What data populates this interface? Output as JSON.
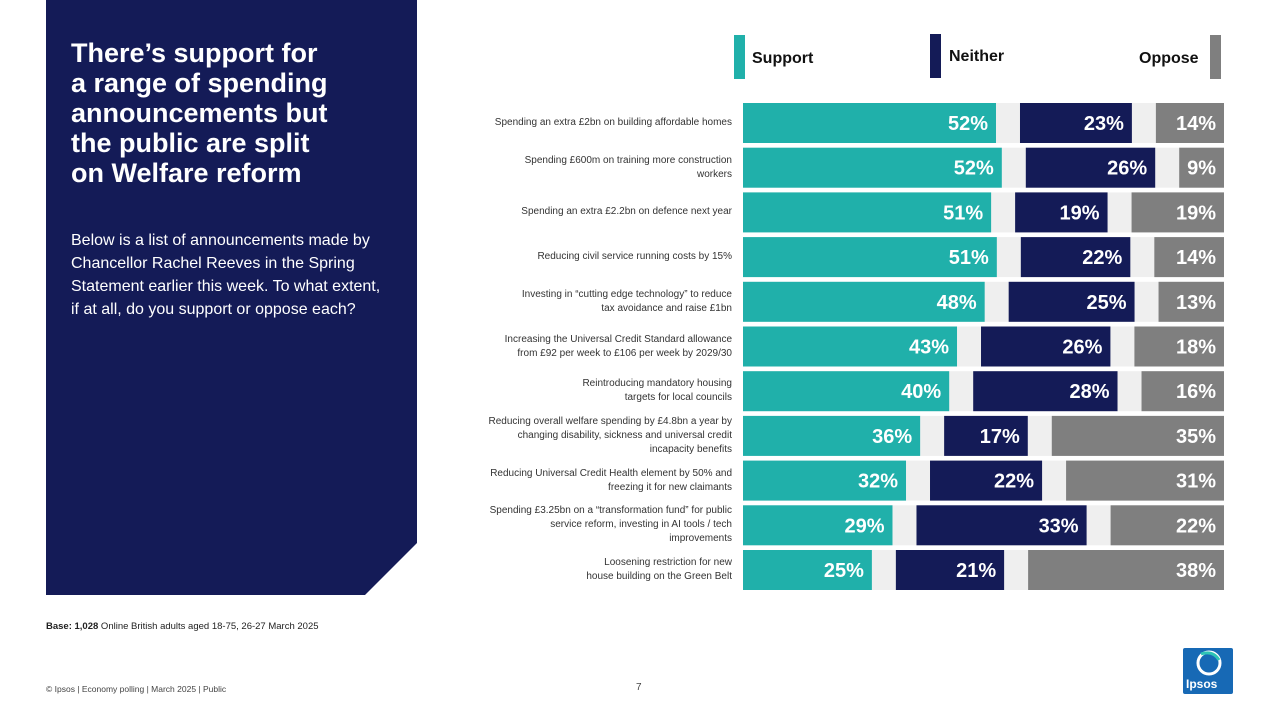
{
  "title": "There’s support for\na range of spending\nannouncements but\nthe public are split\non Welfare reform",
  "subtitle": "Below is a list of announcements made by Chancellor Rachel Reeves in the Spring Statement earlier this week. To what extent, if at all, do you support or oppose each?",
  "legend": {
    "support": "Support",
    "neither": "Neither",
    "oppose": "Oppose"
  },
  "colors": {
    "support": "#20b0aa",
    "neither": "#141b57",
    "oppose": "#7f7f7f",
    "gap": "#efefef",
    "panel": "#141b57"
  },
  "chart_data": {
    "type": "bar",
    "stacked": true,
    "orientation": "horizontal",
    "categories": [
      "Spending an extra £2bn on building affordable homes",
      "Spending £600m on training more construction\nworkers",
      "Spending an extra £2.2bn on defence next year",
      "Reducing civil service running costs by 15%",
      "Investing in “cutting edge technology” to reduce\ntax avoidance and raise £1bn",
      "Increasing the Universal Credit Standard allowance\nfrom £92 per week to £106 per week by 2029/30",
      "Reintroducing mandatory housing\ntargets for local councils",
      "Reducing overall welfare spending by £4.8bn a year by\nchanging disability, sickness and universal credit\nincapacity benefits",
      "Reducing Universal Credit Health element by 50% and\nfreezing it for new claimants",
      "Spending £3.25bn on a “transformation fund” for public\nservice reform, investing in AI tools / tech\nimprovements",
      "Loosening restriction for new\nhouse building on the Green Belt"
    ],
    "series": [
      {
        "name": "Support",
        "values": [
          52,
          52,
          51,
          51,
          48,
          43,
          40,
          36,
          32,
          29,
          25
        ]
      },
      {
        "name": "Neither",
        "values": [
          23,
          26,
          19,
          22,
          25,
          26,
          28,
          17,
          22,
          33,
          21
        ]
      },
      {
        "name": "Oppose",
        "values": [
          14,
          9,
          19,
          14,
          13,
          18,
          16,
          35,
          31,
          22,
          38
        ]
      }
    ],
    "unit": "%",
    "xlim": [
      0,
      100
    ]
  },
  "base_note": {
    "label": "Base: 1,028",
    "text": " Online British adults aged 18-75, 26-27 March 2025"
  },
  "footer": "© Ipsos | Economy polling | March 2025 | Public",
  "page_number": "7",
  "logo_text": "Ipsos"
}
